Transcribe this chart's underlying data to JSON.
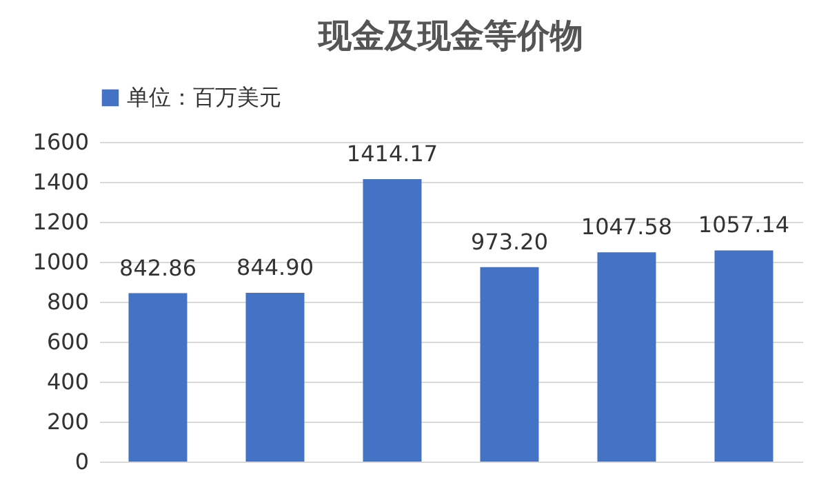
{
  "chart_data": {
    "type": "bar",
    "title": "现金及现金等价物",
    "categories": [
      null,
      null,
      null,
      null,
      null,
      null
    ],
    "series": [
      {
        "name": "单位：百万美元",
        "color": "#4472c4",
        "values": [
          842.86,
          844.9,
          1414.17,
          973.2,
          1047.58,
          1057.14
        ]
      }
    ],
    "value_labels": [
      "842.86",
      "844.90",
      "1414.17",
      "973.20",
      "1047.58",
      "1057.14"
    ],
    "ylim": [
      0,
      1600
    ],
    "yticks": [
      0,
      200,
      400,
      600,
      800,
      1000,
      1200,
      1400,
      1600
    ],
    "grid": "y",
    "legend": "top",
    "tick_labels": "y"
  }
}
